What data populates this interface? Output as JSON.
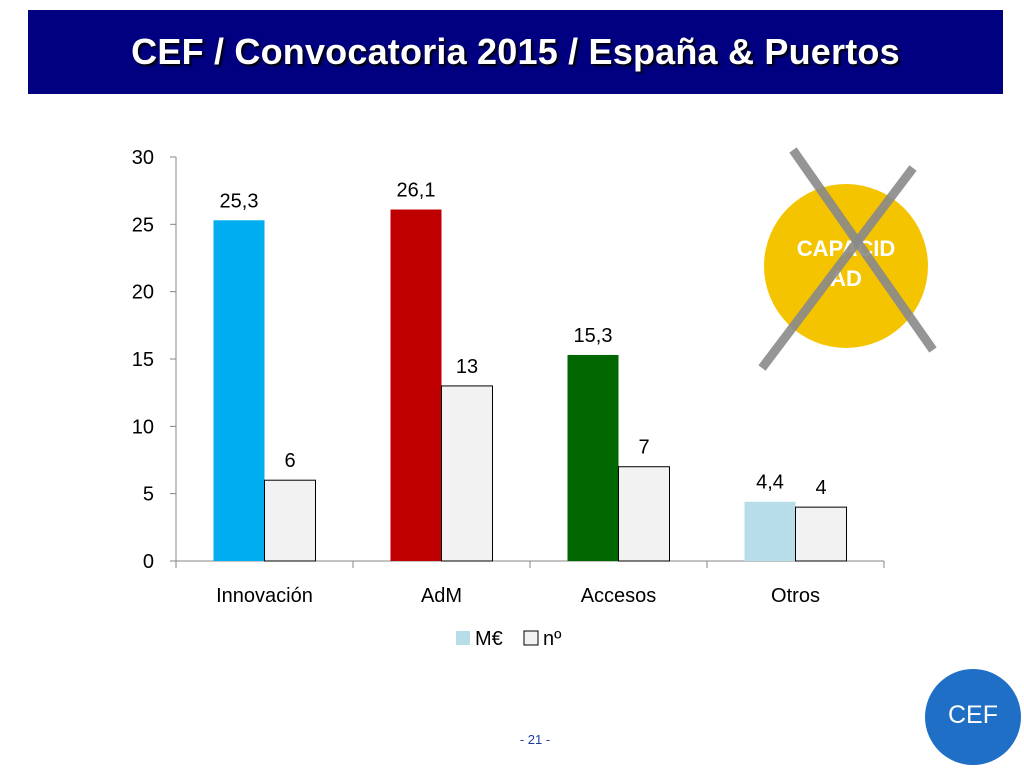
{
  "slide": {
    "title": "CEF / Convocatoria 2015 / España & Puertos",
    "page_number": "- 21 -"
  },
  "badge": {
    "label": "CAPACIDAD",
    "label_lines": [
      "CAPACID",
      "AD"
    ],
    "color": "#f5c400",
    "cross_color": "#8a8a8a"
  },
  "logo": {
    "text": "CEF",
    "color": "#1f6fc6"
  },
  "chart_data": {
    "type": "bar",
    "categories": [
      "Innovación",
      "AdM",
      "Accesos",
      "Otros"
    ],
    "series": [
      {
        "name": "M€",
        "values": [
          25.3,
          26.1,
          15.3,
          4.4
        ],
        "labels": [
          "25,3",
          "26,1",
          "15,3",
          "4,4"
        ],
        "colors": [
          "#00aeef",
          "#c00000",
          "#006600",
          "#b7dde8"
        ]
      },
      {
        "name": "nº",
        "values": [
          6,
          13,
          7,
          4
        ],
        "labels": [
          "6",
          "13",
          "7",
          "4"
        ],
        "colors": [
          "#f2f2f2",
          "#f2f2f2",
          "#f2f2f2",
          "#f2f2f2"
        ]
      }
    ],
    "ylim": [
      0,
      30
    ],
    "yticks": [
      0,
      5,
      10,
      15,
      20,
      25,
      30
    ],
    "grid": false,
    "legend": "bottom"
  }
}
